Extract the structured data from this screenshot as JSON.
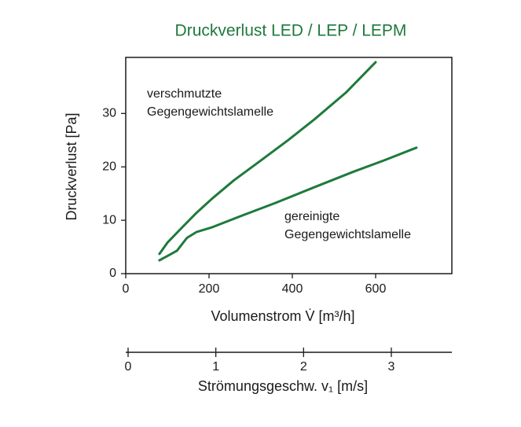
{
  "chart_data": {
    "type": "line",
    "title": "Druckverlust LED / LEP / LEPM",
    "xlabel": "Volumenstrom V̇ [m³/h]",
    "ylabel": "Druckverlust [Pa]",
    "xlim": [
      0,
      783
    ],
    "ylim": [
      0,
      40.5
    ],
    "xticks": [
      0,
      200,
      400,
      600
    ],
    "yticks": [
      0,
      10,
      20,
      30
    ],
    "x2label": "Strömungsgeschw. v₁ [m/s]",
    "x2lim": [
      0,
      3.69
    ],
    "x2ticks": [
      0,
      1,
      2,
      3
    ],
    "series": [
      {
        "color": "#1e7a3c",
        "x": [
          81,
          100,
          132,
          170,
          208,
          260,
          321,
          390,
          453,
          530,
          600
        ],
        "values": [
          3.7,
          5.8,
          8.4,
          11.4,
          14.1,
          17.5,
          21,
          25,
          28.9,
          34,
          39.6
        ]
      },
      {
        "color": "#1e7a3c",
        "x": [
          81,
          100,
          123,
          147,
          170,
          208,
          280,
          358,
          450,
          547,
          620,
          698
        ],
        "values": [
          2.5,
          3.3,
          4.3,
          6.7,
          7.8,
          8.7,
          10.9,
          13.2,
          16.1,
          19.1,
          21.2,
          23.6
        ]
      }
    ],
    "annotations": [
      {
        "lines": [
          "verschmutzte",
          "Gegengewichtslamelle"
        ]
      },
      {
        "lines": [
          "gereinigte",
          "Gegengewichtslamelle"
        ]
      }
    ]
  }
}
